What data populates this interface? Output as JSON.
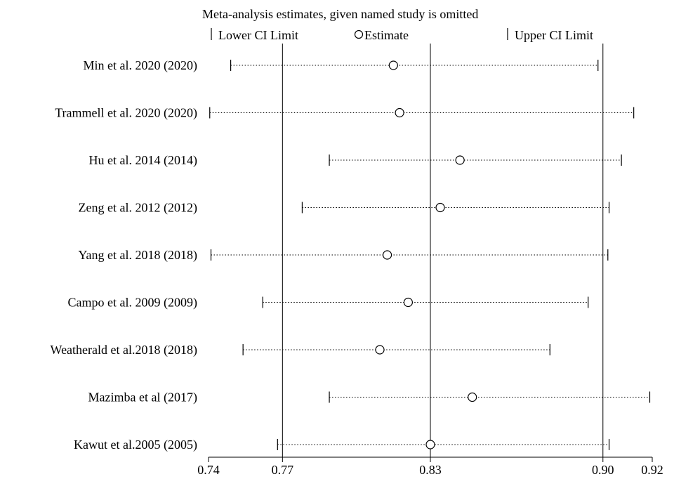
{
  "chart_data": {
    "type": "forest",
    "title": "Meta-analysis estimates, given named study is omitted",
    "legend": {
      "lower": "Lower CI Limit",
      "estimate": "Estimate",
      "upper": "Upper CI Limit",
      "placement": "top"
    },
    "xlim": [
      0.74,
      0.92
    ],
    "xticks": [
      0.74,
      0.77,
      0.83,
      0.9,
      0.92
    ],
    "xtick_labels": [
      "0.74",
      "0.77",
      "0.83",
      "0.90",
      "0.92"
    ],
    "reference_lines": [
      0.77,
      0.83,
      0.9
    ],
    "studies": [
      {
        "label": "Min et al. 2020 (2020)",
        "lower": 0.749,
        "estimate": 0.815,
        "upper": 0.898
      },
      {
        "label": "Trammell et al. 2020 (2020)",
        "lower": 0.7405,
        "estimate": 0.8175,
        "upper": 0.9125
      },
      {
        "label": "Hu et al. 2014 (2014)",
        "lower": 0.789,
        "estimate": 0.842,
        "upper": 0.9075
      },
      {
        "label": "Zeng et al. 2012 (2012)",
        "lower": 0.778,
        "estimate": 0.834,
        "upper": 0.9025
      },
      {
        "label": "Yang et al. 2018 (2018)",
        "lower": 0.741,
        "estimate": 0.8125,
        "upper": 0.902
      },
      {
        "label": "Campo et al. 2009 (2009)",
        "lower": 0.762,
        "estimate": 0.821,
        "upper": 0.894
      },
      {
        "label": "Weatherald et al.2018 (2018)",
        "lower": 0.754,
        "estimate": 0.8095,
        "upper": 0.8785
      },
      {
        "label": "Mazimba et al (2017)",
        "lower": 0.789,
        "estimate": 0.847,
        "upper": 0.919
      },
      {
        "label": "Kawut et al.2005 (2005)",
        "lower": 0.768,
        "estimate": 0.83,
        "upper": 0.9025
      }
    ]
  }
}
